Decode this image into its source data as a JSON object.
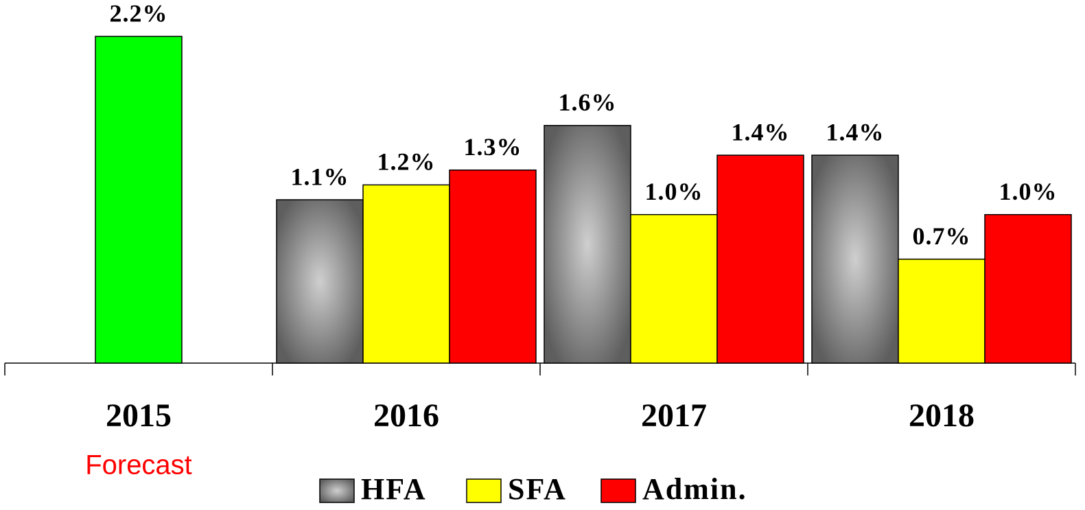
{
  "chart_data": {
    "type": "bar",
    "categories": [
      "2015",
      "2016",
      "2017",
      "2018"
    ],
    "series": [
      {
        "name": "HFA",
        "color": "gradient-gray",
        "values": [
          null,
          1.1,
          1.6,
          1.4
        ],
        "value_labels": [
          null,
          "1.1%",
          "1.6%",
          "1.4%"
        ]
      },
      {
        "name": "SFA",
        "color": "#ffff00",
        "values": [
          null,
          1.2,
          1.0,
          0.7
        ],
        "value_labels": [
          null,
          "1.2%",
          "1.0%",
          "0.7%"
        ]
      },
      {
        "name": "Admin.",
        "color": "#ff0000",
        "values": [
          null,
          1.3,
          1.4,
          1.0
        ],
        "value_labels": [
          null,
          "1.3%",
          "1.4%",
          "1.0%"
        ]
      }
    ],
    "extra_bars": [
      {
        "color": "#00ff00",
        "values": [
          2.2,
          null,
          null,
          null
        ],
        "value_labels": [
          "2.2%",
          null,
          null,
          null
        ]
      }
    ],
    "annotation": "Forecast"
  }
}
